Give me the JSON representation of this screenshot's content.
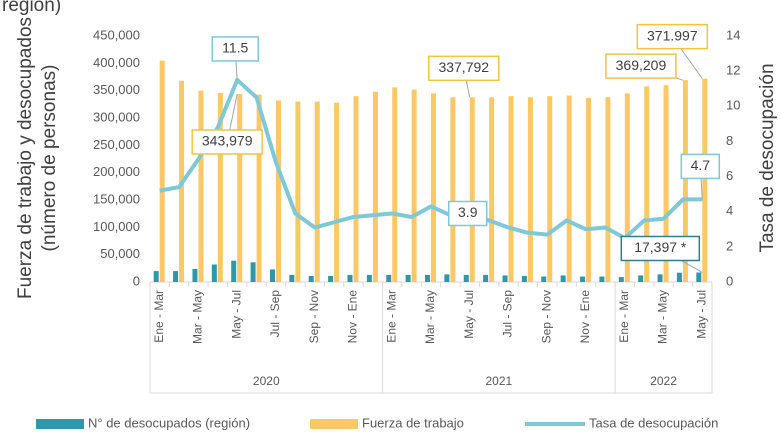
{
  "chart_data": {
    "type": "bar-line",
    "clipped_title": "región)",
    "ylabel": [
      "Fuerza de trabajo y desocupados",
      "(número de personas)"
    ],
    "y2label": "Tasa de desocupación",
    "categories": [
      "Ene - Mar",
      null,
      "Mar - May",
      null,
      "May - Jul",
      null,
      "Jul - Sep",
      null,
      "Sep - Nov",
      null,
      "Nov - Ene",
      null,
      "Ene - Mar",
      null,
      "Mar - May",
      null,
      "May - Jul",
      null,
      "Jul - Sep",
      null,
      "Sep - Nov",
      null,
      "Nov - Ene",
      null,
      "Ene - Mar",
      null,
      "Mar - May",
      null,
      "May - Jul"
    ],
    "year_groups": [
      {
        "name": "2020",
        "count": 12
      },
      {
        "name": "2021",
        "count": 12
      },
      {
        "name": "2022",
        "count": 5
      }
    ],
    "series": [
      {
        "name": "N° de desocupados (región)",
        "kind": "bar",
        "color": "#2f97ab",
        "values": [
          20000,
          20000,
          24000,
          32000,
          39000,
          36000,
          23000,
          13000,
          11000,
          11000,
          13000,
          13000,
          13000,
          13000,
          13000,
          14000,
          13000,
          13000,
          12000,
          11000,
          10000,
          12000,
          10000,
          10000,
          9000,
          12000,
          14000,
          17000,
          17397
        ],
        "value_labels": [
          null,
          null,
          null,
          null,
          null,
          null,
          null,
          null,
          null,
          null,
          null,
          null,
          null,
          null,
          null,
          null,
          null,
          null,
          null,
          null,
          null,
          null,
          null,
          null,
          null,
          null,
          null,
          null,
          "17,397 *"
        ]
      },
      {
        "name": "Fuerza de trabajo",
        "kind": "bar",
        "color": "#fcc865",
        "values": [
          405000,
          368000,
          350000,
          346000,
          343979,
          343000,
          332000,
          330000,
          330000,
          328000,
          340000,
          348000,
          356000,
          352000,
          345000,
          338000,
          337792,
          338000,
          340000,
          338000,
          340000,
          341000,
          337000,
          338000,
          345000,
          358000,
          360000,
          369209,
          371997
        ],
        "value_labels": [
          null,
          null,
          null,
          null,
          "343,979",
          null,
          null,
          null,
          null,
          null,
          null,
          null,
          null,
          null,
          null,
          null,
          "337,792",
          null,
          null,
          null,
          null,
          null,
          null,
          null,
          null,
          null,
          null,
          "369,209",
          "371.997"
        ]
      },
      {
        "name": "Tasa de desocupación",
        "kind": "line",
        "axis": "y2",
        "color": "#7ec8d8",
        "values": [
          5.2,
          5.4,
          7.0,
          8.8,
          11.5,
          10.5,
          6.8,
          3.9,
          3.1,
          3.4,
          3.7,
          3.8,
          3.9,
          3.7,
          4.3,
          3.8,
          3.9,
          3.5,
          3.1,
          2.8,
          2.7,
          3.5,
          3.0,
          3.1,
          2.5,
          3.5,
          3.6,
          4.7,
          4.7
        ],
        "value_labels": [
          null,
          null,
          null,
          null,
          "11.5",
          null,
          null,
          null,
          null,
          null,
          null,
          null,
          null,
          null,
          null,
          null,
          "3.9",
          null,
          null,
          null,
          null,
          null,
          null,
          null,
          null,
          null,
          null,
          null,
          "4.7"
        ]
      }
    ],
    "ylim": [
      0,
      450000
    ],
    "yticks": [
      0,
      {
        "value": 50000,
        "label": "50,000"
      },
      {
        "value": 100000,
        "label": "100,000"
      },
      {
        "value": 150000,
        "label": "150,000"
      },
      {
        "value": 200000,
        "label": "200,000"
      },
      {
        "value": 250000,
        "label": "250,000"
      },
      {
        "value": 300000,
        "label": "300,000"
      },
      {
        "value": 350000,
        "label": "350,000"
      },
      {
        "value": 400000,
        "label": "400,000"
      },
      {
        "value": 450000,
        "label": "450,000"
      }
    ],
    "y2lim": [
      0,
      14
    ],
    "y2ticks": [
      0,
      2,
      4,
      6,
      8,
      10,
      12,
      14
    ],
    "legend": "bottom"
  }
}
